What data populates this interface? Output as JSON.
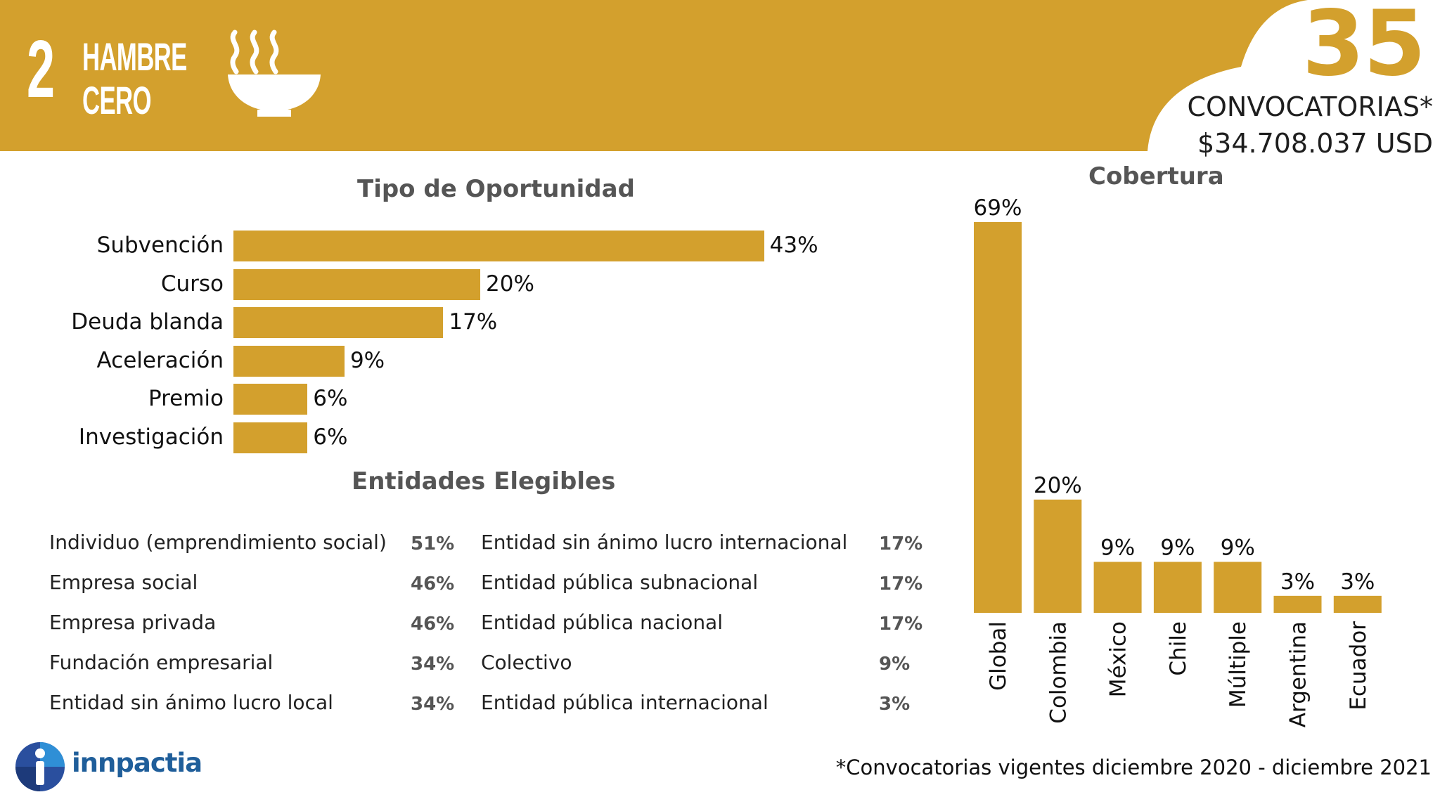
{
  "sdg": {
    "number": "2",
    "title_line1": "HAMBRE",
    "title_line2": "CERO",
    "icon": "soup-bowl-icon"
  },
  "summary": {
    "count": "35",
    "count_label": "CONVOCATORIAS*",
    "amount": "$34.708.037 USD"
  },
  "colors": {
    "accent": "#d3a02d",
    "title_gray": "#555555",
    "logo_blue": "#1f5e9a"
  },
  "chart_data": [
    {
      "type": "bar",
      "orientation": "horizontal",
      "title": "Tipo de Oportunidad",
      "categories": [
        "Subvención",
        "Curso",
        "Deuda blanda",
        "Aceleración",
        "Premio",
        "Investigación"
      ],
      "values": [
        43,
        20,
        17,
        9,
        6,
        6
      ],
      "value_labels": [
        "43%",
        "20%",
        "17%",
        "9%",
        "6%",
        "6%"
      ],
      "unit": "%",
      "grid": false,
      "legend": "none"
    },
    {
      "type": "bar",
      "orientation": "vertical",
      "title": "Cobertura",
      "categories": [
        "Global",
        "Colombia",
        "México",
        "Chile",
        "Múltiple",
        "Argentina",
        "Ecuador"
      ],
      "values": [
        69,
        20,
        9,
        9,
        9,
        3,
        3
      ],
      "value_labels": [
        "69%",
        "20%",
        "9%",
        "9%",
        "9%",
        "3%",
        "3%"
      ],
      "unit": "%",
      "ylim": [
        0,
        69
      ],
      "grid": false,
      "legend": "none"
    },
    {
      "type": "table",
      "title": "Entidades Elegibles",
      "columns": [
        [
          {
            "label": "Individuo (emprendimiento social)",
            "value": "51%"
          },
          {
            "label": "Empresa social",
            "value": "46%"
          },
          {
            "label": "Empresa privada",
            "value": "46%"
          },
          {
            "label": "Fundación empresarial",
            "value": "34%"
          },
          {
            "label": "Entidad sin ánimo lucro local",
            "value": "34%"
          }
        ],
        [
          {
            "label": "Entidad sin ánimo lucro internacional",
            "value": "17%"
          },
          {
            "label": "Entidad pública subnacional",
            "value": "17%"
          },
          {
            "label": "Entidad pública nacional",
            "value": "17%"
          },
          {
            "label": "Colectivo",
            "value": "9%"
          },
          {
            "label": "Entidad pública internacional",
            "value": "3%"
          }
        ]
      ]
    }
  ],
  "logo": {
    "text": "innpactia",
    "icon": "innpactia-logo-icon"
  },
  "footnote": "*Convocatorias vigentes diciembre 2020 - diciembre 2021"
}
